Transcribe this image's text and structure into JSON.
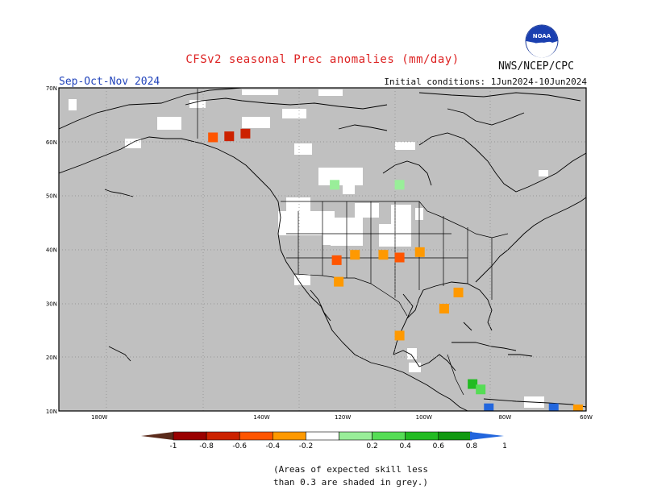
{
  "header": {
    "title": "CFSv2 seasonal Prec anomalies (mm/day)",
    "season": "Sep-Oct-Nov 2024",
    "initial_conditions": "Initial conditions: 1Jun2024-10Jun2024",
    "agency": "NWS/NCEP/CPC",
    "logo_text": "NOAA"
  },
  "map": {
    "region": "North America",
    "lat_range": [
      10,
      70
    ],
    "lon_range": [
      -190,
      -60
    ],
    "lat_labels": [
      "70N",
      "60N",
      "50N",
      "40N",
      "30N",
      "20N",
      "10N"
    ],
    "lon_labels": [
      "180W",
      "140W",
      "120W",
      "100W",
      "80W",
      "60W"
    ],
    "low_skill_color": "#c0c0c0"
  },
  "anomaly_patches": [
    {
      "lat": 61,
      "lon": -148,
      "category": "-0.8 to -0.6"
    },
    {
      "lat": 60.8,
      "lon": -152,
      "category": "-0.6 to -0.4"
    },
    {
      "lat": 61.5,
      "lon": -144,
      "category": "-0.8 to -0.6"
    },
    {
      "lat": 38,
      "lon": -121.5,
      "category": "-0.6 to -0.4"
    },
    {
      "lat": 39,
      "lon": -117,
      "category": "-0.4 to -0.2"
    },
    {
      "lat": 38.5,
      "lon": -106,
      "category": "-0.6 to -0.4"
    },
    {
      "lat": 39,
      "lon": -110,
      "category": "-0.4 to -0.2"
    },
    {
      "lat": 39.5,
      "lon": -101,
      "category": "-0.4 to -0.2"
    },
    {
      "lat": 34,
      "lon": -121,
      "category": "-0.4 to -0.2"
    },
    {
      "lat": 32,
      "lon": -91.5,
      "category": "-0.4 to -0.2"
    },
    {
      "lat": 29,
      "lon": -95,
      "category": "-0.4 to -0.2"
    },
    {
      "lat": 24,
      "lon": -106,
      "category": "-0.4 to -0.2"
    },
    {
      "lat": 52,
      "lon": -106,
      "category": "0.2 to 0.4"
    },
    {
      "lat": 52,
      "lon": -122,
      "category": "0.2 to 0.4"
    },
    {
      "lat": 15,
      "lon": -88,
      "category": "0.6 to 0.8"
    },
    {
      "lat": 14,
      "lon": -86,
      "category": "0.4 to 0.6"
    },
    {
      "lat": 10.5,
      "lon": -84,
      "category": "> 1"
    },
    {
      "lat": 10.5,
      "lon": -68,
      "category": "> 1"
    },
    {
      "lat": 10.3,
      "lon": -62,
      "category": "-0.4 to -0.2"
    }
  ],
  "colorbar": {
    "labels": [
      "-1",
      "-0.8",
      "-0.6",
      "-0.4",
      "-0.2",
      "0.2",
      "0.4",
      "0.6",
      "0.8",
      "1"
    ],
    "colors": [
      "#5a2a1a",
      "#9a0000",
      "#cc2200",
      "#ff5500",
      "#ff9900",
      "#ffffff",
      "#99ee99",
      "#55dd55",
      "#22bb22",
      "#119911",
      "#2266dd"
    ]
  },
  "note": {
    "line1": "(Areas of expected skill less",
    "line2": "than 0.3 are shaded in grey.)"
  }
}
